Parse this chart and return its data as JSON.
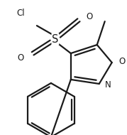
{
  "bg_color": "#ffffff",
  "line_color": "#1a1a1a",
  "line_width": 1.6,
  "font_size": 8.5,
  "figsize": [
    1.79,
    1.9
  ],
  "dpi": 100,
  "xlim": [
    0,
    179
  ],
  "ylim": [
    0,
    190
  ]
}
